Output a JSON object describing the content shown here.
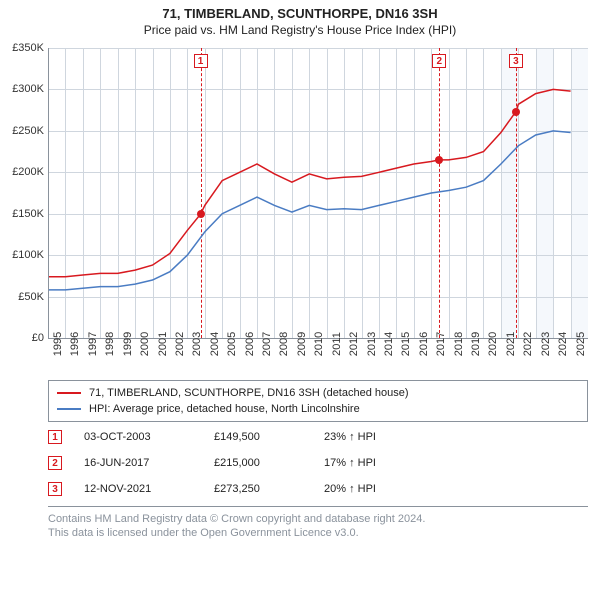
{
  "title": "71, TIMBERLAND, SCUNTHORPE, DN16 3SH",
  "subtitle": "Price paid vs. HM Land Registry's House Price Index (HPI)",
  "chart": {
    "type": "line",
    "background_color": "#ffffff",
    "grid_color": "#cfd6de",
    "shaded_band_color": "#f5f8fc",
    "shaded_bands": [
      [
        2021,
        2022
      ],
      [
        2023,
        2024
      ],
      [
        2025,
        2026
      ]
    ],
    "xlim": [
      1995,
      2026
    ],
    "ylim": [
      0,
      350000
    ],
    "ytick_step": 50000,
    "yticks": [
      "£0",
      "£50K",
      "£100K",
      "£150K",
      "£200K",
      "£250K",
      "£300K",
      "£350K"
    ],
    "xticks": [
      1995,
      1996,
      1997,
      1998,
      1999,
      2000,
      2001,
      2002,
      2003,
      2004,
      2005,
      2006,
      2007,
      2008,
      2009,
      2010,
      2011,
      2012,
      2013,
      2014,
      2015,
      2016,
      2017,
      2018,
      2019,
      2020,
      2021,
      2022,
      2023,
      2024,
      2025
    ],
    "axis_color": "#8a929c",
    "label_fontsize": 11,
    "title_fontsize": 13,
    "series": [
      {
        "name": "property",
        "label": "71, TIMBERLAND, SCUNTHORPE, DN16 3SH (detached house)",
        "color": "#d8191f",
        "line_width": 1.5,
        "points": [
          [
            1995,
            74000
          ],
          [
            1996,
            74000
          ],
          [
            1997,
            76000
          ],
          [
            1998,
            78000
          ],
          [
            1999,
            78000
          ],
          [
            2000,
            82000
          ],
          [
            2001,
            88000
          ],
          [
            2002,
            102000
          ],
          [
            2003,
            130000
          ],
          [
            2003.76,
            149500
          ],
          [
            2004,
            160000
          ],
          [
            2005,
            190000
          ],
          [
            2006,
            200000
          ],
          [
            2007,
            210000
          ],
          [
            2008,
            198000
          ],
          [
            2009,
            188000
          ],
          [
            2010,
            198000
          ],
          [
            2011,
            192000
          ],
          [
            2012,
            194000
          ],
          [
            2013,
            195000
          ],
          [
            2014,
            200000
          ],
          [
            2015,
            205000
          ],
          [
            2016,
            210000
          ],
          [
            2017,
            213000
          ],
          [
            2017.46,
            215000
          ],
          [
            2018,
            215000
          ],
          [
            2019,
            218000
          ],
          [
            2020,
            225000
          ],
          [
            2021,
            248000
          ],
          [
            2021.86,
            273250
          ],
          [
            2022,
            282000
          ],
          [
            2023,
            295000
          ],
          [
            2024,
            300000
          ],
          [
            2025,
            298000
          ]
        ]
      },
      {
        "name": "hpi",
        "label": "HPI: Average price, detached house, North Lincolnshire",
        "color": "#4a7cc3",
        "line_width": 1.5,
        "points": [
          [
            1995,
            58000
          ],
          [
            1996,
            58000
          ],
          [
            1997,
            60000
          ],
          [
            1998,
            62000
          ],
          [
            1999,
            62000
          ],
          [
            2000,
            65000
          ],
          [
            2001,
            70000
          ],
          [
            2002,
            80000
          ],
          [
            2003,
            100000
          ],
          [
            2004,
            128000
          ],
          [
            2005,
            150000
          ],
          [
            2006,
            160000
          ],
          [
            2007,
            170000
          ],
          [
            2008,
            160000
          ],
          [
            2009,
            152000
          ],
          [
            2010,
            160000
          ],
          [
            2011,
            155000
          ],
          [
            2012,
            156000
          ],
          [
            2013,
            155000
          ],
          [
            2014,
            160000
          ],
          [
            2015,
            165000
          ],
          [
            2016,
            170000
          ],
          [
            2017,
            175000
          ],
          [
            2018,
            178000
          ],
          [
            2019,
            182000
          ],
          [
            2020,
            190000
          ],
          [
            2021,
            210000
          ],
          [
            2022,
            232000
          ],
          [
            2023,
            245000
          ],
          [
            2024,
            250000
          ],
          [
            2025,
            248000
          ]
        ]
      }
    ],
    "markers": [
      {
        "n": "1",
        "x": 2003.76,
        "y": 149500
      },
      {
        "n": "2",
        "x": 2017.46,
        "y": 215000
      },
      {
        "n": "3",
        "x": 2021.86,
        "y": 273250
      }
    ],
    "marker_color": "#d8191f",
    "marker_dash": "4 3"
  },
  "annotations": [
    {
      "n": "1",
      "date": "03-OCT-2003",
      "price": "£149,500",
      "pct": "23% ↑ HPI"
    },
    {
      "n": "2",
      "date": "16-JUN-2017",
      "price": "£215,000",
      "pct": "17% ↑ HPI"
    },
    {
      "n": "3",
      "date": "12-NOV-2021",
      "price": "£273,250",
      "pct": "20% ↑ HPI"
    }
  ],
  "footer_line1": "Contains HM Land Registry data © Crown copyright and database right 2024.",
  "footer_line2": "This data is licensed under the Open Government Licence v3.0.",
  "footer_color": "#8a929c"
}
